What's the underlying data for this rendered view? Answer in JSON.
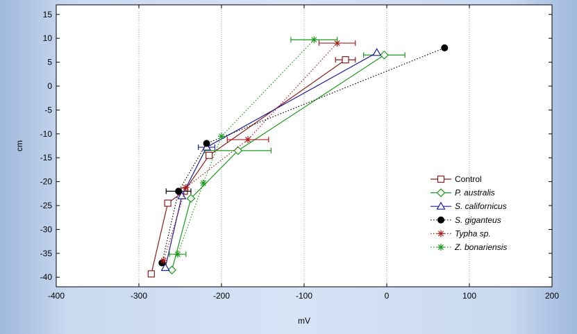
{
  "chart_data": {
    "type": "line",
    "xlabel": "mV",
    "ylabel": "cm",
    "xlim": [
      -400,
      200
    ],
    "ylim": [
      -42,
      17
    ],
    "x_ticks": [
      -400,
      -300,
      -200,
      -100,
      0,
      100,
      200
    ],
    "y_ticks": [
      15,
      10,
      5,
      0,
      -5,
      -10,
      -15,
      -20,
      -25,
      -30,
      -35,
      -40
    ],
    "x_tick_labels": [
      "-400",
      "-300",
      "-200",
      "-100",
      "0",
      "100",
      "200"
    ],
    "y_tick_labels": [
      "15",
      "10",
      "5",
      "0",
      "-5",
      "-10",
      "-15",
      "-20",
      "-25",
      "-30",
      "-35",
      "-40"
    ],
    "grid_x": true,
    "grid_y": false,
    "legend_position": "bottom-right",
    "series": [
      {
        "name": "Control",
        "color": "#8b1a1a",
        "marker": "square",
        "dash": "solid",
        "points": [
          {
            "x": -285,
            "y": -39.3
          },
          {
            "x": -265,
            "y": -24.5
          },
          {
            "x": -245,
            "y": -22
          },
          {
            "x": -215,
            "y": -14.5
          },
          {
            "x": -50,
            "y": 5.5,
            "xerr": 12
          }
        ]
      },
      {
        "name": "P. australis",
        "color": "#1a9a1a",
        "marker": "diamond",
        "dash": "solid",
        "points": [
          {
            "x": -260,
            "y": -38.5
          },
          {
            "x": -237,
            "y": -23.5
          },
          {
            "x": -180,
            "y": -13.5,
            "xerr": 40
          },
          {
            "x": -3,
            "y": 6.5,
            "xerr": 25
          }
        ]
      },
      {
        "name": "S. californicus",
        "color": "#1c1c9c",
        "marker": "triangle",
        "dash": "solid",
        "points": [
          {
            "x": -268,
            "y": -38
          },
          {
            "x": -248,
            "y": -23
          },
          {
            "x": -218,
            "y": -12.8,
            "xerr": 10
          },
          {
            "x": -12,
            "y": 7
          }
        ]
      },
      {
        "name": "S. giganteus",
        "color": "#000000",
        "marker": "circle",
        "dash": "dotted",
        "points": [
          {
            "x": -272,
            "y": -37
          },
          {
            "x": -252,
            "y": -22,
            "xerr": 15
          },
          {
            "x": -218,
            "y": -12
          },
          {
            "x": 70,
            "y": 8
          }
        ]
      },
      {
        "name": "Typha sp.",
        "color": "#b01a1a",
        "marker": "asterisk",
        "dash": "dotted",
        "points": [
          {
            "x": -270,
            "y": -36.5
          },
          {
            "x": -243,
            "y": -21.2
          },
          {
            "x": -168,
            "y": -11.2,
            "xerr": 25
          },
          {
            "x": -60,
            "y": 9,
            "xerr": 22
          }
        ]
      },
      {
        "name": "Z. bonariensis",
        "color": "#1a9a1a",
        "marker": "asterisk",
        "dash": "dotted",
        "points": [
          {
            "x": -253,
            "y": -35.2,
            "xerr": 10
          },
          {
            "x": -222,
            "y": -20.3
          },
          {
            "x": -200,
            "y": -10.5
          },
          {
            "x": -88,
            "y": 9.7,
            "xerr": 28
          }
        ]
      }
    ]
  }
}
